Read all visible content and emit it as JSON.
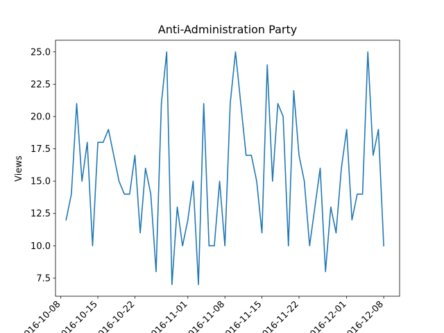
{
  "chart_data": {
    "type": "line",
    "title": "Anti-Administration Party",
    "xlabel": "",
    "ylabel": "Views",
    "x_start": "2016-10-09",
    "x_step_days": 1,
    "xlim": [
      "2016-10-07",
      "2016-12-11"
    ],
    "ylim": [
      6.1,
      25.9
    ],
    "x_ticks": [
      "2016-10-08",
      "2016-10-15",
      "2016-10-22",
      "2016-11-01",
      "2016-11-08",
      "2016-11-15",
      "2016-11-22",
      "2016-12-01",
      "2016-12-08"
    ],
    "x_tick_labels": [
      "2016-10-08",
      "2016-10-15",
      "2016-10-22",
      "2016-11-01",
      "2016-11-08",
      "2016-11-15",
      "2016-11-22",
      "2016-12-01",
      "2016-12-08"
    ],
    "y_ticks": [
      7.5,
      10.0,
      12.5,
      15.0,
      17.5,
      20.0,
      22.5,
      25.0
    ],
    "y_tick_labels": [
      "7.5",
      "10.0",
      "12.5",
      "15.0",
      "17.5",
      "20.0",
      "22.5",
      "25.0"
    ],
    "grid": false,
    "series": [
      {
        "color": "#1f77b4",
        "values": [
          12,
          14,
          21,
          15,
          18,
          10,
          18,
          18,
          19,
          17,
          15,
          14,
          14,
          17,
          11,
          16,
          14,
          8,
          21,
          25,
          7,
          13,
          10,
          12,
          15,
          7,
          21,
          10,
          10,
          15,
          10,
          21,
          25,
          21,
          17,
          17,
          15,
          11,
          24,
          15,
          21,
          20,
          10,
          22,
          17,
          15,
          10,
          13,
          16,
          8,
          13,
          11,
          16,
          19,
          12,
          14,
          14,
          25,
          17,
          19,
          10
        ]
      }
    ]
  }
}
